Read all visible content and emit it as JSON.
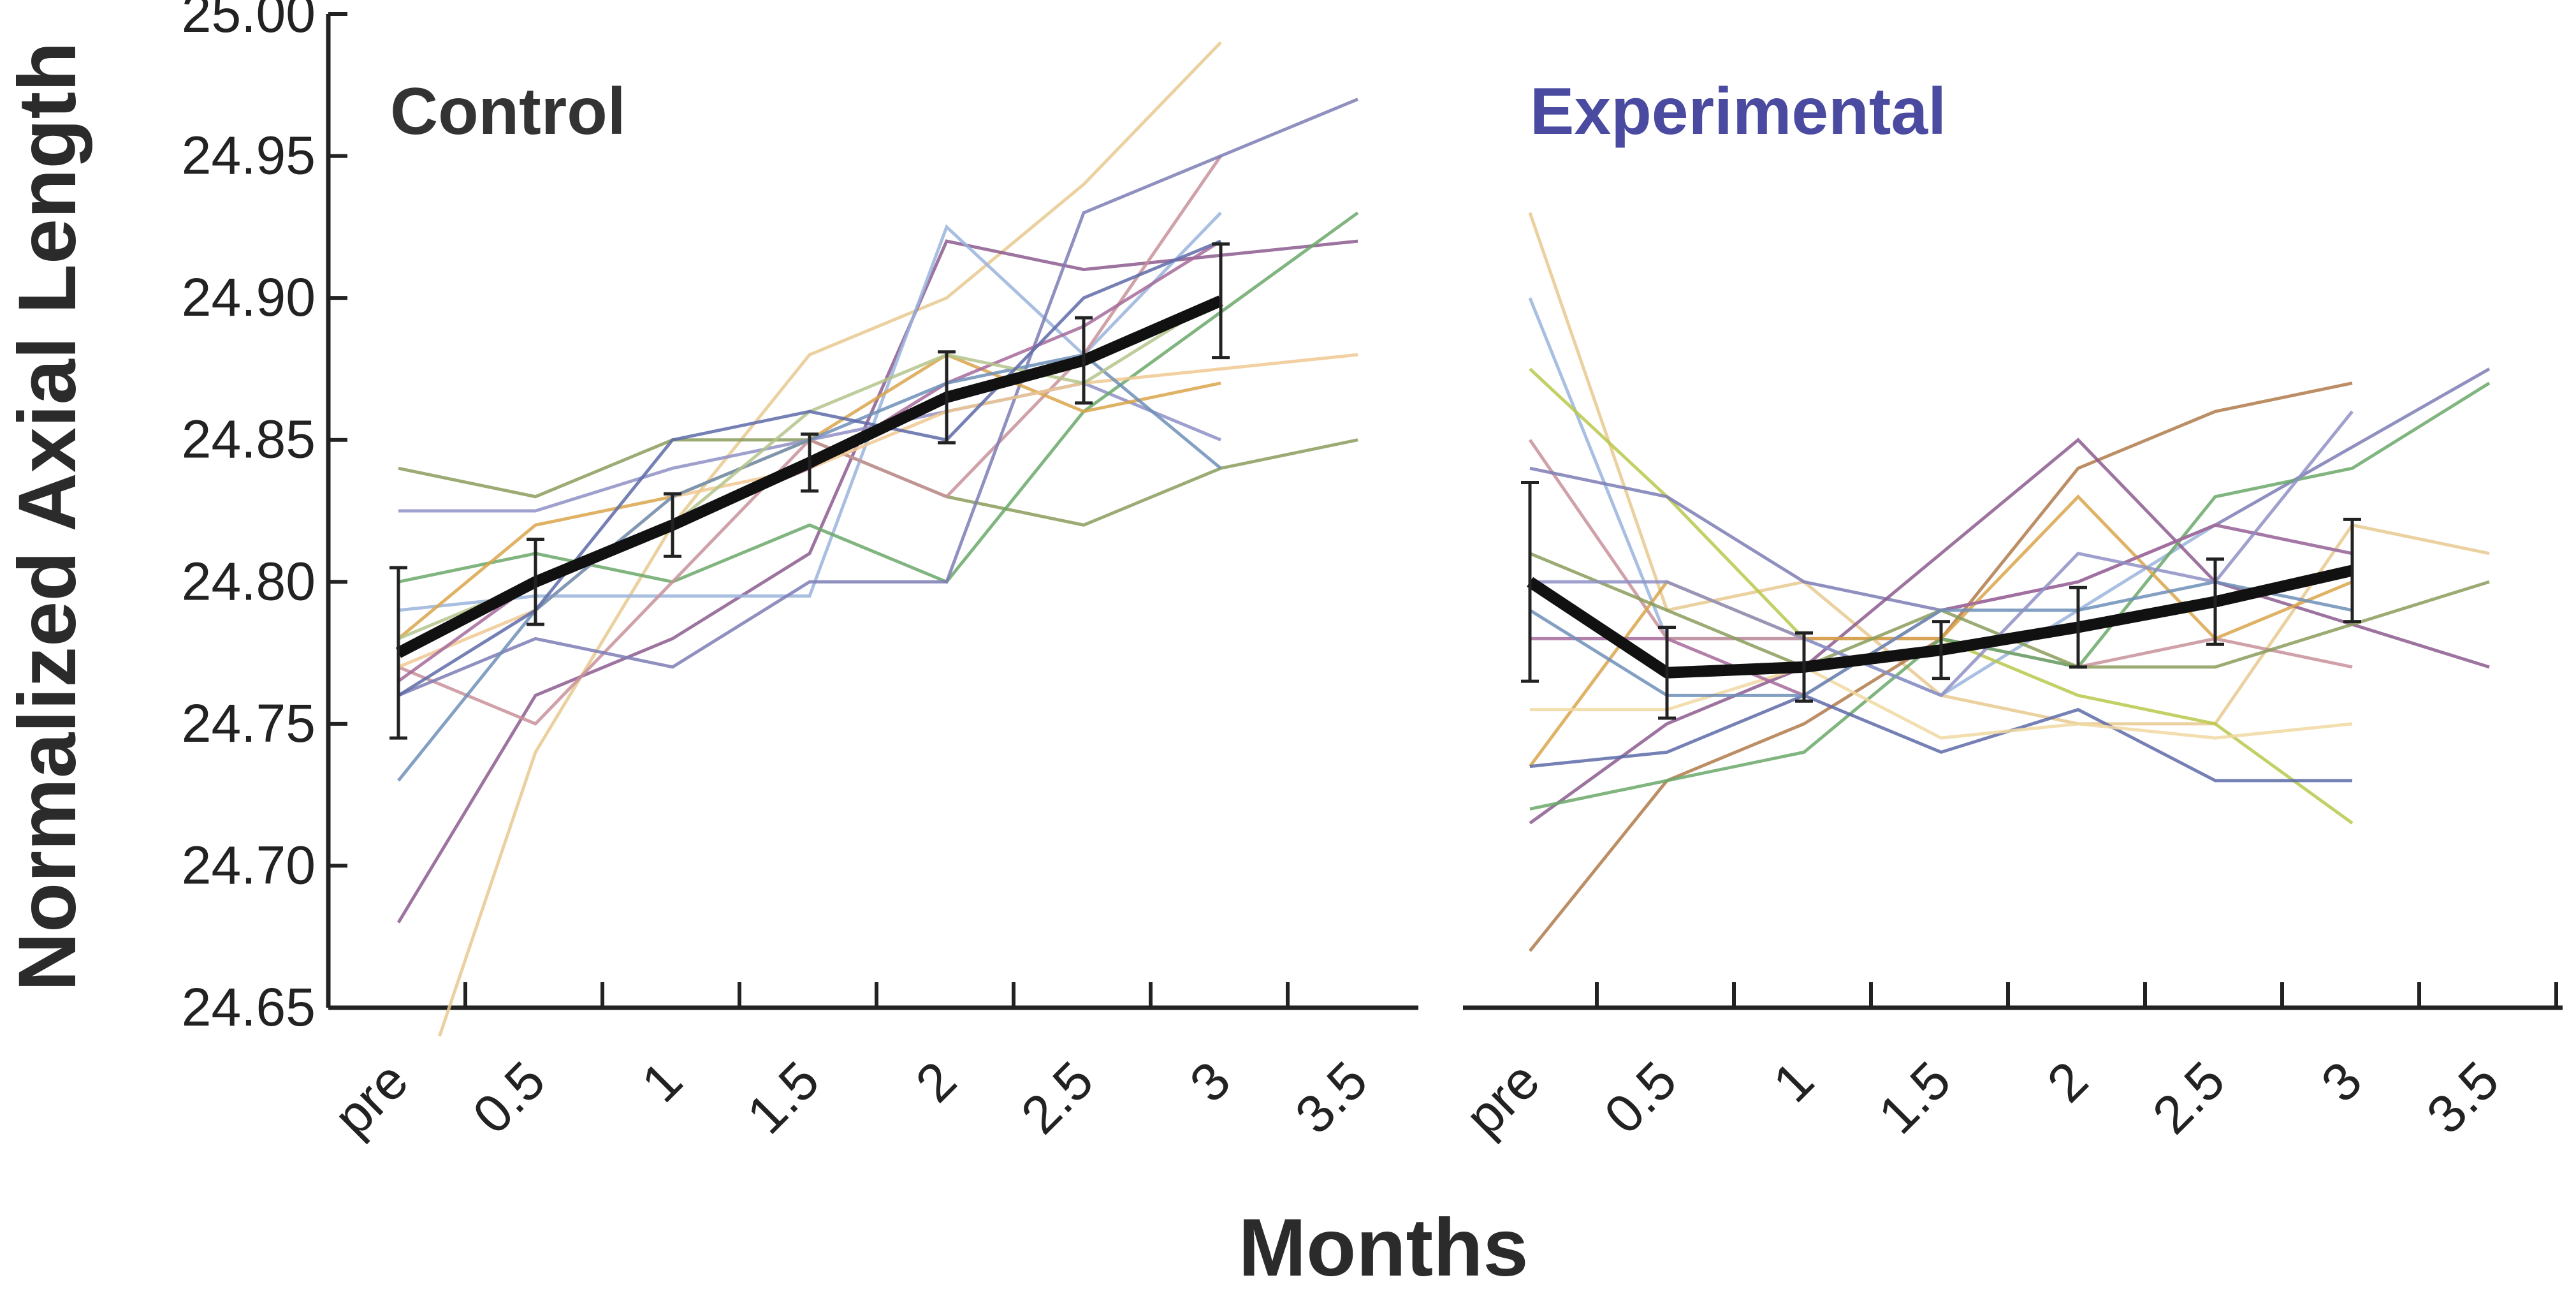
{
  "chart_data": {
    "type": "line",
    "ylabel": "Normalized Axial Length",
    "xlabel": "Months",
    "ylim": [
      24.65,
      25.0
    ],
    "yticks": [
      "24.65",
      "24.70",
      "24.75",
      "24.80",
      "24.85",
      "24.90",
      "24.95",
      "25.00"
    ],
    "yvalues": [
      24.65,
      24.7,
      24.75,
      24.8,
      24.85,
      24.9,
      24.95,
      25.0
    ],
    "categories": [
      "pre",
      "0.5",
      "1",
      "1.5",
      "2",
      "2.5",
      "3",
      "3.5"
    ],
    "panels": [
      {
        "title": "Control",
        "title_color": "#333333",
        "x": [
          0,
          0.5,
          1,
          1.5,
          2,
          2.5,
          3
        ],
        "mean": [
          24.775,
          24.8,
          24.82,
          24.842,
          24.865,
          24.878,
          24.899
        ],
        "error": [
          0.03,
          0.015,
          0.011,
          0.01,
          0.016,
          0.015,
          0.02
        ],
        "individuals": [
          {
            "color": "#e8c98f",
            "x": [
              0.15,
              0.5,
              1,
              1.5,
              2,
              2.5,
              3
            ],
            "values": [
              24.64,
              24.74,
              24.82,
              24.88,
              24.9,
              24.94,
              24.99
            ]
          },
          {
            "color": "#8c5a8e",
            "x": [
              0,
              0.5,
              1,
              1.5,
              2,
              2.5,
              3.5
            ],
            "values": [
              24.68,
              24.76,
              24.78,
              24.81,
              24.92,
              24.91,
              24.92
            ]
          },
          {
            "color": "#8a9c5a",
            "x": [
              0,
              0.5,
              1,
              1.5,
              2,
              2.5,
              3,
              3.5
            ],
            "values": [
              24.84,
              24.83,
              24.85,
              24.85,
              24.83,
              24.82,
              24.84,
              24.85
            ]
          },
          {
            "color": "#8e8fc4",
            "x": [
              0,
              0.5,
              1,
              1.5,
              2,
              2.5,
              3
            ],
            "values": [
              24.825,
              24.825,
              24.84,
              24.85,
              24.86,
              24.87,
              24.85
            ]
          },
          {
            "color": "#9ab4dc",
            "x": [
              0,
              0.5,
              1,
              1.5,
              2,
              2.5,
              3
            ],
            "values": [
              24.79,
              24.795,
              24.795,
              24.795,
              24.925,
              24.88,
              24.93
            ]
          },
          {
            "color": "#6aa86a",
            "x": [
              0,
              0.5,
              1,
              1.5,
              2,
              2.5,
              3.5
            ],
            "values": [
              24.8,
              24.81,
              24.8,
              24.82,
              24.8,
              24.86,
              24.93
            ]
          },
          {
            "color": "#c8909a",
            "x": [
              0,
              0.5,
              1,
              1.5,
              2,
              2.5,
              3
            ],
            "values": [
              24.77,
              24.75,
              24.8,
              24.85,
              24.83,
              24.88,
              24.95
            ]
          },
          {
            "color": "#7d7db5",
            "x": [
              0,
              0.5,
              1,
              1.5,
              2,
              2.5,
              3.5
            ],
            "values": [
              24.76,
              24.78,
              24.77,
              24.8,
              24.8,
              24.93,
              24.97
            ]
          },
          {
            "color": "#d9a44a",
            "x": [
              0,
              0.5,
              1,
              1.5,
              2,
              2.5,
              3
            ],
            "values": [
              24.78,
              24.82,
              24.83,
              24.85,
              24.88,
              24.86,
              24.87
            ]
          },
          {
            "color": "#f0c890",
            "x": [
              0,
              0.5,
              1,
              1.5,
              2,
              2.5,
              3.5
            ],
            "values": [
              24.77,
              24.79,
              24.83,
              24.84,
              24.86,
              24.87,
              24.88
            ]
          },
          {
            "color": "#a56a9a",
            "x": [
              0,
              0.5,
              1,
              1.5,
              2,
              2.5,
              3
            ],
            "values": [
              24.765,
              24.8,
              24.82,
              24.84,
              24.87,
              24.89,
              24.92
            ]
          },
          {
            "color": "#6d8fb8",
            "x": [
              0,
              0.5,
              1,
              1.5,
              2,
              2.5,
              3
            ],
            "values": [
              24.73,
              24.79,
              24.83,
              24.85,
              24.87,
              24.88,
              24.84
            ]
          },
          {
            "color": "#b3c48a",
            "x": [
              0,
              0.5,
              1,
              1.5,
              2,
              2.5,
              3
            ],
            "values": [
              24.78,
              24.8,
              24.82,
              24.86,
              24.88,
              24.87,
              24.9
            ]
          },
          {
            "color": "#5d6aa8",
            "x": [
              0,
              0.5,
              1,
              1.5,
              2,
              2.5,
              3
            ],
            "values": [
              24.76,
              24.79,
              24.85,
              24.86,
              24.85,
              24.9,
              24.92
            ]
          }
        ]
      },
      {
        "title": "Experimental",
        "title_color": "#4a4aa0",
        "x": [
          0,
          0.5,
          1,
          1.5,
          2,
          2.5,
          3
        ],
        "mean": [
          24.8,
          24.768,
          24.77,
          24.776,
          24.784,
          24.793,
          24.804
        ],
        "error": [
          0.035,
          0.016,
          0.012,
          0.01,
          0.014,
          0.015,
          0.018
        ],
        "individuals": [
          {
            "color": "#e8c98f",
            "x": [
              0,
              0.5,
              1,
              1.5,
              2,
              2.5,
              3,
              3.5
            ],
            "values": [
              24.93,
              24.79,
              24.8,
              24.76,
              24.75,
              24.75,
              24.82,
              24.81
            ]
          },
          {
            "color": "#9ab4dc",
            "x": [
              0,
              0.5,
              1,
              1.5,
              2,
              2.5,
              3
            ],
            "values": [
              24.9,
              24.78,
              24.78,
              24.76,
              24.79,
              24.82,
              24.81
            ]
          },
          {
            "color": "#b8c84a",
            "x": [
              0,
              0.5,
              1,
              1.5,
              2,
              2.5,
              3
            ],
            "values": [
              24.875,
              24.83,
              24.78,
              24.78,
              24.76,
              24.75,
              24.715
            ]
          },
          {
            "color": "#c8909a",
            "x": [
              0,
              0.5,
              1,
              1.5,
              2,
              2.5,
              3
            ],
            "values": [
              24.85,
              24.78,
              24.78,
              24.78,
              24.77,
              24.78,
              24.77
            ]
          },
          {
            "color": "#7d7db5",
            "x": [
              0,
              0.5,
              1,
              1.5,
              2,
              2.5,
              3.5
            ],
            "values": [
              24.84,
              24.83,
              24.8,
              24.79,
              24.8,
              24.82,
              24.875
            ]
          },
          {
            "color": "#b07a4a",
            "x": [
              0,
              0.5,
              1,
              1.5,
              2,
              2.5,
              3
            ],
            "values": [
              24.67,
              24.73,
              24.75,
              24.78,
              24.84,
              24.86,
              24.87
            ]
          },
          {
            "color": "#8c5a8e",
            "x": [
              0,
              0.5,
              1,
              1.5,
              2,
              2.5,
              3.5
            ],
            "values": [
              24.715,
              24.75,
              24.77,
              24.81,
              24.85,
              24.8,
              24.77
            ]
          },
          {
            "color": "#6aa86a",
            "x": [
              0,
              0.5,
              1,
              1.5,
              2,
              2.5,
              3,
              3.5
            ],
            "values": [
              24.72,
              24.73,
              24.74,
              24.78,
              24.77,
              24.83,
              24.84,
              24.87
            ]
          },
          {
            "color": "#d9a44a",
            "x": [
              0,
              0.5,
              1,
              1.5,
              2,
              2.5,
              3
            ],
            "values": [
              24.735,
              24.8,
              24.78,
              24.78,
              24.83,
              24.78,
              24.8
            ]
          },
          {
            "color": "#5d6aa8",
            "x": [
              0,
              0.5,
              1,
              1.5,
              2,
              2.5,
              3
            ],
            "values": [
              24.735,
              24.74,
              24.76,
              24.74,
              24.755,
              24.73,
              24.73
            ]
          },
          {
            "color": "#f0d8a0",
            "x": [
              0,
              0.5,
              1,
              1.5,
              2,
              2.5,
              3
            ],
            "values": [
              24.755,
              24.755,
              24.77,
              24.745,
              24.75,
              24.745,
              24.75
            ]
          },
          {
            "color": "#a56a9a",
            "x": [
              0,
              0.5,
              1,
              1.5,
              2,
              2.5,
              3
            ],
            "values": [
              24.78,
              24.78,
              24.76,
              24.79,
              24.8,
              24.82,
              24.81
            ]
          },
          {
            "color": "#8a9c5a",
            "x": [
              0,
              0.5,
              1,
              1.5,
              2,
              2.5,
              3.5
            ],
            "values": [
              24.81,
              24.79,
              24.77,
              24.79,
              24.77,
              24.77,
              24.8
            ]
          },
          {
            "color": "#6d8fb8",
            "x": [
              0,
              0.5,
              1,
              1.5,
              2,
              2.5,
              3
            ],
            "values": [
              24.79,
              24.76,
              24.76,
              24.79,
              24.79,
              24.8,
              24.79
            ]
          },
          {
            "color": "#8e8fc4",
            "x": [
              0,
              0.5,
              1,
              1.5,
              2,
              2.5,
              3
            ],
            "values": [
              24.8,
              24.8,
              24.78,
              24.76,
              24.81,
              24.8,
              24.86
            ]
          }
        ]
      }
    ]
  }
}
